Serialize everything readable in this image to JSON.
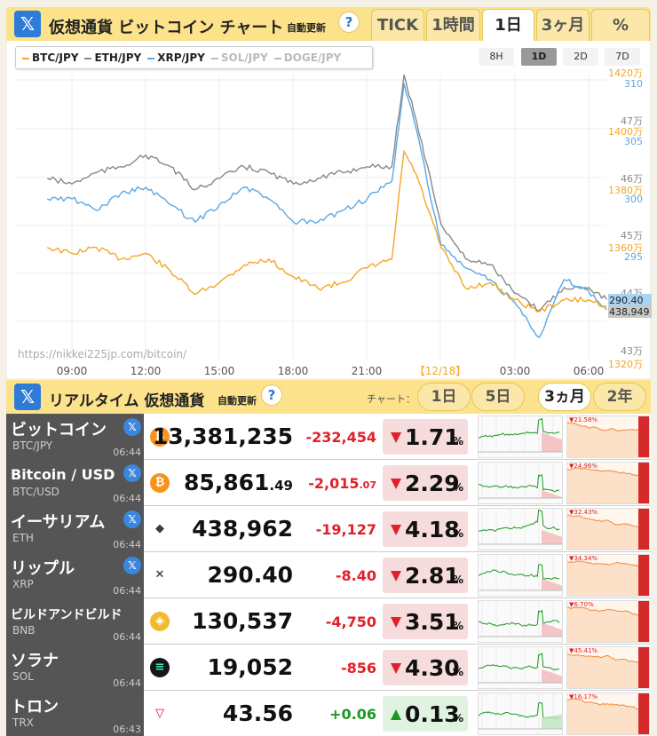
{
  "header": {
    "title": "仮想通貨 ビットコイン チャート",
    "auto_update": "自動更新",
    "help": "?",
    "x_logo": "𝕏",
    "period_tabs": [
      {
        "label": "TICK",
        "active": false
      },
      {
        "label": "1時間",
        "active": false
      },
      {
        "label": "1日",
        "active": true
      },
      {
        "label": "3ヶ月",
        "active": false
      },
      {
        "label": "%",
        "active": false
      }
    ]
  },
  "chart": {
    "legend": [
      {
        "label": "BTC/JPY",
        "color": "#f5a623",
        "active": true
      },
      {
        "label": "ETH/JPY",
        "color": "#888888",
        "active": true
      },
      {
        "label": "XRP/JPY",
        "color": "#5aa9e6",
        "active": true
      },
      {
        "label": "SOL/JPY",
        "color": "#bbbbbb",
        "active": false
      },
      {
        "label": "DOGE/JPY",
        "color": "#bbbbbb",
        "active": false
      }
    ],
    "range_buttons": [
      {
        "label": "8H",
        "active": false
      },
      {
        "label": "1D",
        "active": true
      },
      {
        "label": "2D",
        "active": false
      },
      {
        "label": "7D",
        "active": false
      }
    ],
    "watermark": "https://nikkei225jp.com/bitcoin/",
    "x_ticks": [
      "09:00",
      "12:00",
      "15:00",
      "18:00",
      "21:00",
      "【12/18】",
      "03:00",
      "06:00"
    ],
    "btc_axis": [
      {
        "v": "1420万",
        "y": 1420
      },
      {
        "v": "1400万",
        "y": 1400
      },
      {
        "v": "1380万",
        "y": 1380
      },
      {
        "v": "1360万",
        "y": 1360
      },
      {
        "v": "1320万",
        "y": 1320
      }
    ],
    "eth_axis": [
      {
        "v": "47万"
      },
      {
        "v": "46万"
      },
      {
        "v": "45万"
      },
      {
        "v": "44万"
      },
      {
        "v": "43万"
      }
    ],
    "xrp_axis": [
      {
        "v": "310"
      },
      {
        "v": "305"
      },
      {
        "v": "300"
      },
      {
        "v": "295"
      }
    ],
    "xrp_current": "290.40",
    "eth_current": "438,949"
  },
  "chart_data": {
    "type": "line",
    "x": [
      "08:00",
      "09:00",
      "10:00",
      "11:00",
      "12:00",
      "13:00",
      "14:00",
      "15:00",
      "16:00",
      "17:00",
      "18:00",
      "19:00",
      "20:00",
      "21:00",
      "22:00",
      "22:30",
      "23:00",
      "00:00",
      "01:00",
      "02:00",
      "03:00",
      "04:00",
      "05:00",
      "06:00",
      "06:44"
    ],
    "series": [
      {
        "name": "BTC/JPY",
        "color": "#f5a623",
        "axis": "btc",
        "values": [
          13600000,
          13580000,
          13600000,
          13560000,
          13580000,
          13520000,
          13440000,
          13480000,
          13540000,
          13560000,
          13500000,
          13460000,
          13480000,
          13530000,
          13560000,
          13930000,
          13850000,
          13600000,
          13460000,
          13480000,
          13420000,
          13380000,
          13420000,
          13420000,
          13400000
        ]
      },
      {
        "name": "ETH/JPY",
        "color": "#888888",
        "axis": "eth",
        "values": [
          460000,
          459000,
          461000,
          462000,
          464000,
          462000,
          458000,
          460000,
          462000,
          461000,
          459000,
          460000,
          461000,
          462000,
          462000,
          478000,
          470000,
          452000,
          446000,
          445000,
          440000,
          437000,
          441000,
          441000,
          438949
        ]
      },
      {
        "name": "XRP/JPY",
        "color": "#5aa9e6",
        "axis": "xrp",
        "values": [
          300.0,
          300.0,
          299.0,
          300.5,
          301.0,
          299.5,
          298.0,
          299.5,
          301.0,
          300.0,
          298.0,
          298.0,
          299.0,
          300.0,
          301.5,
          310.0,
          306.0,
          296.0,
          294.0,
          293.0,
          291.0,
          288.0,
          293.0,
          292.0,
          290.4
        ]
      }
    ],
    "btc_range": [
      13200000,
      14200000
    ],
    "eth_range": [
      430000,
      478000
    ],
    "xrp_range": [
      285,
      312
    ],
    "grid": true,
    "legend": "top-left"
  },
  "realtime": {
    "title": "リアルタイム 仮想通貨",
    "auto_update": "自動更新",
    "help": "?",
    "chart_label": "チャート：",
    "chart_tabs": [
      {
        "label": "1日",
        "active": false
      },
      {
        "label": "5日",
        "active": false
      },
      {
        "label": "3ヵ月",
        "active": true
      },
      {
        "label": "2年",
        "active": false
      }
    ],
    "rows": [
      {
        "name": "ビットコイン",
        "sub": "BTC/JPY",
        "time": "06:44",
        "x": true,
        "coin": "bitcoin-icon",
        "coin_glyph": "₿",
        "coin_color": "#f7931a",
        "price": "13,381,235",
        "price_dec": "",
        "chg": "-232,454",
        "chg_dec": "",
        "pct": "1.71",
        "pct_unit": "%",
        "dir": "down",
        "name_size": "big",
        "m3": "▼21.58%"
      },
      {
        "name": "Bitcoin / USD",
        "sub": "BTC/USD",
        "time": "06:44",
        "x": true,
        "coin": "bitcoin-icon",
        "coin_glyph": "₿",
        "coin_color": "#f7931a",
        "price": "85,861",
        "price_dec": ".49",
        "chg": "-2,015",
        "chg_dec": ".07",
        "pct": "2.29",
        "pct_unit": "%",
        "dir": "down",
        "name_size": "med",
        "m3": "▼24.96%"
      },
      {
        "name": "イーサリアム",
        "sub": "ETH",
        "time": "06:44",
        "x": true,
        "coin": "ethereum-icon",
        "coin_glyph": "◆",
        "coin_color": "#3c3c3d",
        "price": "438,962",
        "price_dec": "",
        "chg": "-19,127",
        "chg_dec": "",
        "pct": "4.18",
        "pct_unit": "%",
        "dir": "down",
        "name_size": "big",
        "m3": "▼32.43%"
      },
      {
        "name": "リップル",
        "sub": "XRP",
        "time": "06:44",
        "x": true,
        "coin": "xrp-icon",
        "coin_glyph": "✕",
        "coin_color": "#222222",
        "price": "290.40",
        "price_dec": "",
        "chg": "-8.40",
        "chg_dec": "",
        "pct": "2.81",
        "pct_unit": "%",
        "dir": "down",
        "name_size": "big",
        "m3": "▼34.34%"
      },
      {
        "name": "ビルドアンドビルド",
        "sub": "BNB",
        "time": "06:44",
        "x": false,
        "coin": "bnb-icon",
        "coin_glyph": "◈",
        "coin_color": "#f3ba2f",
        "price": "130,537",
        "price_dec": "",
        "chg": "-4,750",
        "chg_dec": "",
        "pct": "3.51",
        "pct_unit": "%",
        "dir": "down",
        "name_size": "small",
        "m3": "▼6.70%"
      },
      {
        "name": "ソラナ",
        "sub": "SOL",
        "time": "06:44",
        "x": false,
        "coin": "solana-icon",
        "coin_glyph": "≡",
        "coin_color": "#9945ff",
        "price": "19,052",
        "price_dec": "",
        "chg": "-856",
        "chg_dec": "",
        "pct": "4.30",
        "pct_unit": "%",
        "dir": "down",
        "name_size": "big",
        "m3": "▼45.41%"
      },
      {
        "name": "トロン",
        "sub": "TRX",
        "time": "06:43",
        "x": false,
        "coin": "tron-icon",
        "coin_glyph": "▽",
        "coin_color": "#eb0029",
        "price": "43.56",
        "price_dec": "",
        "chg": "+0.06",
        "chg_dec": "",
        "pct": "0.13",
        "pct_unit": "%",
        "dir": "up",
        "name_size": "big",
        "m3": "▼16.17%"
      }
    ]
  }
}
